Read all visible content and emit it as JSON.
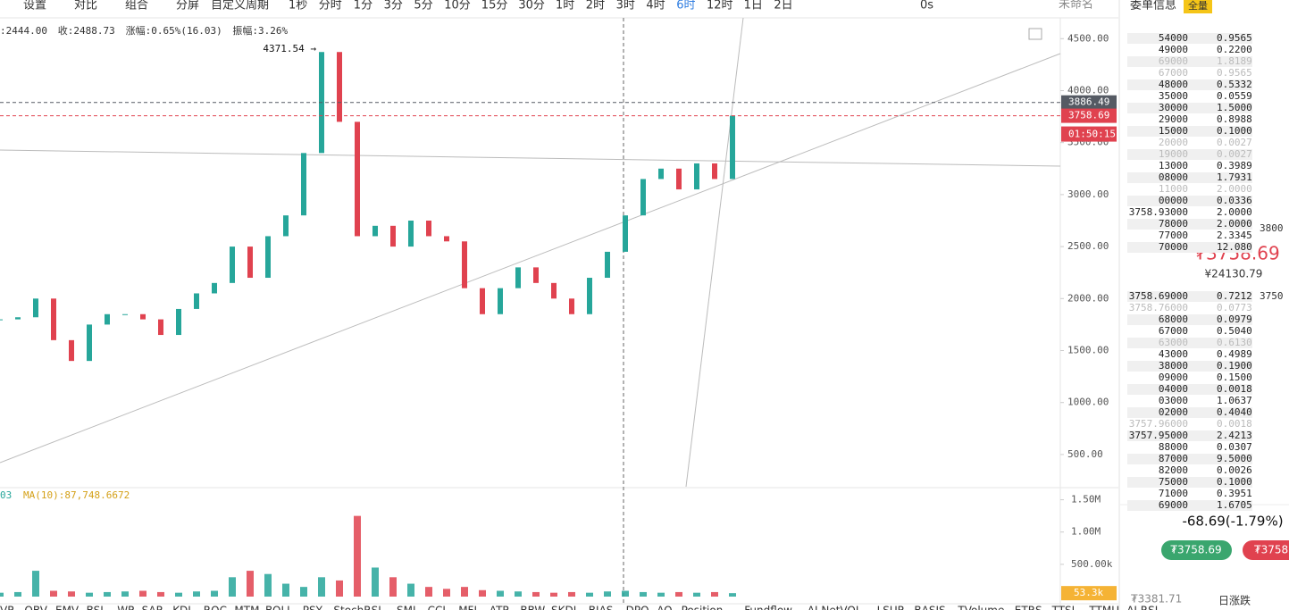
{
  "toolbar": {
    "items": [
      "设置",
      "对比",
      "组合",
      "分屏",
      "自定义周期",
      "1秒",
      "分时",
      "1分",
      "3分",
      "5分",
      "10分",
      "15分",
      "30分",
      "1时",
      "2时",
      "3时",
      "4时",
      "6时",
      "12时",
      "1日",
      "2日"
    ],
    "active": "6时",
    "timer": "0s",
    "layout_name": "未命名"
  },
  "chart_data": {
    "type": "candle",
    "ohlc_info": [
      ":2444.00",
      "收:2488.73",
      "涨幅:0.65%(16.03)",
      "振幅:3.26%"
    ],
    "peak_label": "4371.54 →",
    "values": [
      1800,
      1820,
      2000,
      1600,
      1400,
      1750,
      1850,
      1850,
      1800,
      1650,
      1900,
      2050,
      2150,
      2500,
      2200,
      2600,
      2800,
      3400,
      4371.54,
      3700,
      2600,
      2700,
      2500,
      2750,
      2600,
      2550,
      2100,
      1850,
      2100,
      2300,
      2150,
      2000,
      1850,
      2200,
      2450,
      2800,
      3150,
      3250,
      3050,
      3300,
      3150,
      3758.69
    ],
    "up_color": "#26a69a",
    "down_color": "#e0424f",
    "ylim": [
      190,
      4700
    ],
    "yticks": [
      {
        "value": 500,
        "label": "500.00"
      },
      {
        "value": 1000,
        "label": "1000.00"
      },
      {
        "value": 1500,
        "label": "1500.00"
      },
      {
        "value": 2000,
        "label": "2000.00"
      },
      {
        "value": 2500,
        "label": "2500.00"
      },
      {
        "value": 3000,
        "label": "3000.00"
      },
      {
        "value": 3500,
        "label": "3500.00"
      },
      {
        "value": 4000,
        "label": "4000.00"
      },
      {
        "value": 4500,
        "label": "4500.00"
      }
    ],
    "price_marks": [
      {
        "value": 3886.49,
        "label": "3886.49",
        "color": "#555a63"
      },
      {
        "value": 3758.69,
        "label": "3758.69",
        "color": "#e0424f"
      }
    ],
    "countdown": "01:50:15",
    "volume": {
      "header": [
        "03",
        "MA(10):87,748.6672"
      ],
      "values": [
        60000,
        70000,
        400000,
        90000,
        80000,
        60000,
        70000,
        80000,
        90000,
        70000,
        60000,
        80000,
        90000,
        300000,
        400000,
        350000,
        200000,
        150000,
        300000,
        250000,
        1250000,
        450000,
        300000,
        200000,
        150000,
        120000,
        150000,
        100000,
        90000,
        80000,
        70000,
        60000,
        70000,
        60000,
        80000,
        90000,
        70000,
        60000,
        70000,
        60000,
        70000,
        53300
      ],
      "ylim": [
        0,
        1660000
      ],
      "yticks": [
        {
          "value": 500000,
          "label": "500.00k"
        },
        {
          "value": 1000000,
          "label": "1.00M"
        },
        {
          "value": 1500000,
          "label": "1.50M"
        }
      ],
      "current": {
        "value": 53300,
        "label": "53.3k"
      }
    }
  },
  "indicator_tabs": [
    "VR",
    "OBV",
    "EMV",
    "BSI",
    "WR",
    "SAR",
    "KDJ",
    "ROC",
    "MTM",
    "BOLL",
    "PSY",
    "StochRSI",
    "SMI",
    "CCI",
    "MFI",
    "ATR",
    "BBW",
    "SKDJ",
    "BIAS",
    "DPO",
    "AO",
    "Position",
    "Fundflow",
    "AI NetVOL",
    "LSUR",
    "BASIS",
    "TVolume",
    "ETRS",
    "TTSI",
    "TTMU",
    "AI RSI"
  ],
  "order_book": {
    "title": "委单信息",
    "badge": "全量",
    "asks": [
      [
        "54000",
        "0.9565",
        false
      ],
      [
        "49000",
        "0.2200",
        false
      ],
      [
        "69000",
        "1.8189",
        true
      ],
      [
        "67000",
        "0.9565",
        true
      ],
      [
        "48000",
        "0.5332",
        false
      ],
      [
        "35000",
        "0.0559",
        false
      ],
      [
        "30000",
        "1.5000",
        false
      ],
      [
        "29000",
        "0.8988",
        false
      ],
      [
        "15000",
        "0.1000",
        false
      ],
      [
        "20000",
        "0.0027",
        true
      ],
      [
        "19000",
        "0.0027",
        true
      ],
      [
        "13000",
        "0.3989",
        false
      ],
      [
        "08000",
        "1.7931",
        false
      ],
      [
        "11000",
        "2.0000",
        true
      ],
      [
        "00000",
        "0.0336",
        false
      ],
      [
        "3758.93000",
        "2.0000",
        false
      ],
      [
        "78000",
        "2.0000",
        false
      ],
      [
        "77000",
        "2.3345",
        false
      ],
      [
        "70000",
        "12.080",
        false
      ]
    ],
    "ask_level": "3800",
    "last_price": "₮3758.69",
    "last_cny": "¥24130.79",
    "bid_level": "3750",
    "bids": [
      [
        "3758.69000",
        "0.7212",
        false
      ],
      [
        "3758.76000",
        "0.0773",
        true
      ],
      [
        "68000",
        "0.0979",
        false
      ],
      [
        "67000",
        "0.5040",
        false
      ],
      [
        "63000",
        "0.6130",
        true
      ],
      [
        "43000",
        "0.4989",
        false
      ],
      [
        "38000",
        "0.1900",
        false
      ],
      [
        "09000",
        "0.1500",
        false
      ],
      [
        "04000",
        "0.0018",
        false
      ],
      [
        "03000",
        "1.0637",
        false
      ],
      [
        "02000",
        "0.4040",
        false
      ],
      [
        "3757.96000",
        "0.0018",
        true
      ],
      [
        "3757.95000",
        "2.4213",
        false
      ],
      [
        "88000",
        "0.0307",
        false
      ],
      [
        "87000",
        "9.5000",
        false
      ],
      [
        "82000",
        "0.0026",
        false
      ],
      [
        "75000",
        "0.1000",
        false
      ],
      [
        "71000",
        "0.3951",
        false
      ],
      [
        "69000",
        "1.6705",
        false
      ]
    ],
    "change": "-68.69(-1.79%)",
    "buy_button": "₮3758.69",
    "sell_button": "₮3758.",
    "footer_price": "₮3381.71",
    "footer_label": "日涨跌"
  }
}
